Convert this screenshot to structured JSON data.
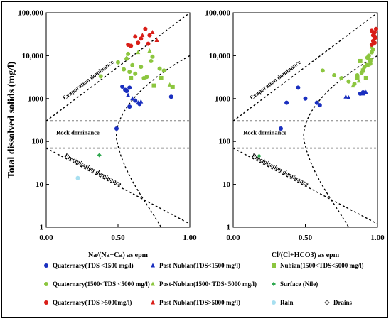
{
  "chart_data": [
    {
      "type": "scatter",
      "id": "left",
      "title": "",
      "xlabel": "Na/(Na+Ca) as epm",
      "ylabel": "Total dissolved solids (mg/l)",
      "xlim": [
        0,
        1
      ],
      "ylim": [
        1,
        100000
      ],
      "yscale": "log",
      "x_ticks": [
        "0.00",
        "0.50",
        "1.00"
      ],
      "y_ticks": [
        "1",
        "10",
        "100",
        "1000",
        "10,000",
        "100,000"
      ],
      "annotations": [
        "Evaporation dominance",
        "Rock dominance",
        "Precipitation dominance"
      ],
      "series": [
        {
          "name": "Quaternary(TDS <1500 mg/l)",
          "color": "#1a2fbf",
          "marker": "circle",
          "points": [
            [
              0.49,
              200
            ],
            [
              0.55,
              1600
            ],
            [
              0.58,
              1800
            ],
            [
              0.56,
              1500
            ],
            [
              0.58,
              650
            ],
            [
              0.62,
              900
            ],
            [
              0.65,
              750
            ],
            [
              0.87,
              1100
            ],
            [
              0.53,
              1900
            ]
          ]
        },
        {
          "name": "Post-Nubian(TDS<1500 mg/l)",
          "color": "#1a2fbf",
          "marker": "triangle",
          "points": [
            [
              0.57,
              1200
            ],
            [
              0.6,
              1000
            ],
            [
              0.64,
              800
            ],
            [
              0.66,
              850
            ]
          ]
        },
        {
          "name": "Nubian(1500<TDS<5000 mg/l)",
          "color": "#8cc63f",
          "marker": "square",
          "points": [
            [
              0.59,
              3000
            ],
            [
              0.75,
              2000
            ],
            [
              0.88,
              1900
            ],
            [
              0.8,
              3000
            ]
          ]
        },
        {
          "name": "Quaternary(1500<TDS <5000 mg/l)",
          "color": "#8cc63f",
          "marker": "circle",
          "points": [
            [
              0.38,
              3300
            ],
            [
              0.54,
              4800
            ],
            [
              0.58,
              4200
            ],
            [
              0.62,
              3800
            ],
            [
              0.68,
              3000
            ],
            [
              0.7,
              3200
            ],
            [
              0.5,
              7000
            ],
            [
              0.56,
              8500
            ],
            [
              0.6,
              6000
            ],
            [
              0.66,
              5500
            ],
            [
              0.73,
              7500
            ],
            [
              0.79,
              5000
            ],
            [
              0.57,
              11000
            ],
            [
              0.74,
              9500
            ],
            [
              0.82,
              4500
            ]
          ]
        },
        {
          "name": "Post-Nubian(1500<TDS<5000 mg/l)",
          "color": "#8cc63f",
          "marker": "triangle",
          "points": [
            [
              0.64,
              12000
            ],
            [
              0.72,
              13000
            ],
            [
              0.86,
              2100
            ],
            [
              0.56,
              9000
            ]
          ]
        },
        {
          "name": "Surface (Nile)",
          "color": "#2fa84f",
          "marker": "diamond",
          "points": [
            [
              0.37,
              48
            ]
          ]
        },
        {
          "name": "Quaternary(TDS >5000mg/l)",
          "color": "#d91e18",
          "marker": "circle",
          "points": [
            [
              0.57,
              18000
            ],
            [
              0.59,
              17000
            ],
            [
              0.62,
              28000
            ],
            [
              0.64,
              20000
            ],
            [
              0.66,
              25000
            ],
            [
              0.69,
              42000
            ],
            [
              0.72,
              30000
            ],
            [
              0.71,
              19000
            ]
          ]
        },
        {
          "name": "Post-Nubian(TDS>5000 mg/l)",
          "color": "#d91e18",
          "marker": "triangle",
          "points": [
            [
              0.74,
              35000
            ],
            [
              0.77,
              23000
            ],
            [
              0.67,
              30000
            ]
          ]
        },
        {
          "name": "Rain",
          "color": "#a7dff0",
          "marker": "circle",
          "points": [
            [
              0.22,
              14
            ]
          ]
        },
        {
          "name": "Drains",
          "color": "#555555",
          "marker": "diamond-open",
          "points": []
        }
      ]
    },
    {
      "type": "scatter",
      "id": "right",
      "title": "",
      "xlabel": "Cl/(Cl+HCO3) as epm",
      "ylabel": "",
      "xlim": [
        0,
        1
      ],
      "ylim": [
        1,
        100000
      ],
      "yscale": "log",
      "x_ticks": [
        "0.00",
        "0.50",
        "1.00"
      ],
      "y_ticks": [
        "1",
        "10",
        "100",
        "1000",
        "10,000",
        "100,000"
      ],
      "annotations": [
        "Evaporation dominance",
        "Rock dominance",
        "Precipitation dominance"
      ],
      "series": [
        {
          "name": "Quaternary(TDS <1500 mg/l)",
          "color": "#1a2fbf",
          "marker": "circle",
          "points": [
            [
              0.33,
              200
            ],
            [
              0.37,
              800
            ],
            [
              0.45,
              1800
            ],
            [
              0.5,
              1000
            ],
            [
              0.58,
              800
            ],
            [
              0.6,
              700
            ],
            [
              0.88,
              1300
            ],
            [
              0.9,
              1400
            ]
          ]
        },
        {
          "name": "Post-Nubian(TDS<1500 mg/l)",
          "color": "#1a2fbf",
          "marker": "triangle",
          "points": [
            [
              0.78,
              1100
            ],
            [
              0.8,
              1050
            ],
            [
              0.9,
              1300
            ],
            [
              0.92,
              1400
            ]
          ]
        },
        {
          "name": "Nubian(1500<TDS<5000 mg/l)",
          "color": "#8cc63f",
          "marker": "square",
          "points": [
            [
              0.86,
              3000
            ],
            [
              0.9,
              4500
            ],
            [
              0.93,
              6000
            ],
            [
              0.95,
              8000
            ],
            [
              0.88,
              7500
            ],
            [
              0.92,
              3000
            ]
          ]
        },
        {
          "name": "Quaternary(1500<TDS <5000 mg/l)",
          "color": "#8cc63f",
          "marker": "circle",
          "points": [
            [
              0.62,
              4500
            ],
            [
              0.7,
              3500
            ],
            [
              0.75,
              3000
            ],
            [
              0.8,
              2500
            ],
            [
              0.84,
              2200
            ],
            [
              0.86,
              3500
            ],
            [
              0.89,
              4000
            ],
            [
              0.91,
              5500
            ],
            [
              0.94,
              10000
            ],
            [
              0.96,
              12000
            ],
            [
              0.97,
              14000
            ],
            [
              0.93,
              9000
            ],
            [
              0.95,
              6500
            ]
          ]
        },
        {
          "name": "Post-Nubian(1500<TDS<5000 mg/l)",
          "color": "#8cc63f",
          "marker": "triangle",
          "points": [
            [
              0.83,
              2000
            ],
            [
              0.87,
              2600
            ],
            [
              0.9,
              5000
            ],
            [
              0.96,
              16000
            ]
          ]
        },
        {
          "name": "Surface (Nile)",
          "color": "#2fa84f",
          "marker": "diamond",
          "points": [
            [
              0.18,
              46
            ]
          ]
        },
        {
          "name": "Quaternary(TDS >5000mg/l)",
          "color": "#d91e18",
          "marker": "circle",
          "points": [
            [
              0.96,
              18000
            ],
            [
              0.97,
              22000
            ],
            [
              0.98,
              25000
            ],
            [
              0.97,
              30000
            ],
            [
              0.98,
              35000
            ],
            [
              0.99,
              42000
            ],
            [
              0.96,
              38000
            ],
            [
              0.98,
              20000
            ]
          ]
        },
        {
          "name": "Post-Nubian(TDS>5000 mg/l)",
          "color": "#d91e18",
          "marker": "triangle",
          "points": [
            [
              0.99,
              27000
            ],
            [
              0.97,
              19000
            ],
            [
              0.98,
              31000
            ]
          ]
        },
        {
          "name": "Rain",
          "color": "#a7dff0",
          "marker": "circle",
          "points": []
        },
        {
          "name": "Drains",
          "color": "#555555",
          "marker": "diamond-open",
          "points": []
        }
      ]
    }
  ],
  "legend": [
    {
      "label": "Quaternary(TDS <1500 mg/l)",
      "color": "#1a2fbf",
      "marker": "circle"
    },
    {
      "label": "Post-Nubian(TDS<1500 mg/l)",
      "color": "#1a2fbf",
      "marker": "triangle"
    },
    {
      "label": "Nubian(1500<TDS<5000 mg/l)",
      "color": "#8cc63f",
      "marker": "square"
    },
    {
      "label": "Quaternary(1500<TDS <5000 mg/l)",
      "color": "#8cc63f",
      "marker": "circle"
    },
    {
      "label": "Post-Nubian(1500<TDS<5000 mg/l)",
      "color": "#8cc63f",
      "marker": "triangle"
    },
    {
      "label": "Surface (Nile)",
      "color": "#2fa84f",
      "marker": "diamond"
    },
    {
      "label": "Quaternary(TDS >5000mg/l)",
      "color": "#d91e18",
      "marker": "circle"
    },
    {
      "label": "Post-Nubian(TDS>5000 mg/l)",
      "color": "#d91e18",
      "marker": "triangle"
    },
    {
      "label": "Rain",
      "color": "#a7dff0",
      "marker": "circle"
    },
    {
      "label": "Drains",
      "color": "#555555",
      "marker": "diamond-open"
    }
  ]
}
